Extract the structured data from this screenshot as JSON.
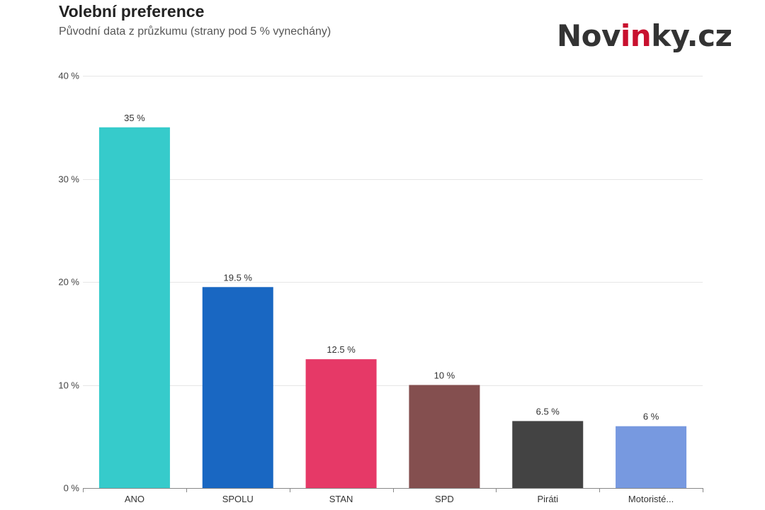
{
  "header": {
    "title": "Volební preference",
    "subtitle": "Původní data z průzkumu (strany pod 5 % vynechány)"
  },
  "logo": {
    "prefix": "Nov",
    "accent": "in",
    "suffix": "ky.cz",
    "accent_color": "#c8102e"
  },
  "chart_data": {
    "type": "bar",
    "categories": [
      "ANO",
      "SPOLU",
      "STAN",
      "SPD",
      "Piráti",
      "Motoristé..."
    ],
    "values": [
      35,
      19.5,
      12.5,
      10,
      6.5,
      6
    ],
    "data_labels": [
      "35 %",
      "19.5 %",
      "12.5 %",
      "10 %",
      "6.5 %",
      "6 %"
    ],
    "colors": [
      "#36cbcb",
      "#1967c2",
      "#e63967",
      "#844f4f",
      "#434343",
      "#7799e0"
    ],
    "ylim": [
      0,
      40
    ],
    "yticks": [
      0,
      10,
      20,
      30,
      40
    ],
    "ytick_labels": [
      "0 %",
      "10 %",
      "20 %",
      "30 %",
      "40 %"
    ],
    "grid": true,
    "xlabel": "",
    "ylabel": ""
  }
}
